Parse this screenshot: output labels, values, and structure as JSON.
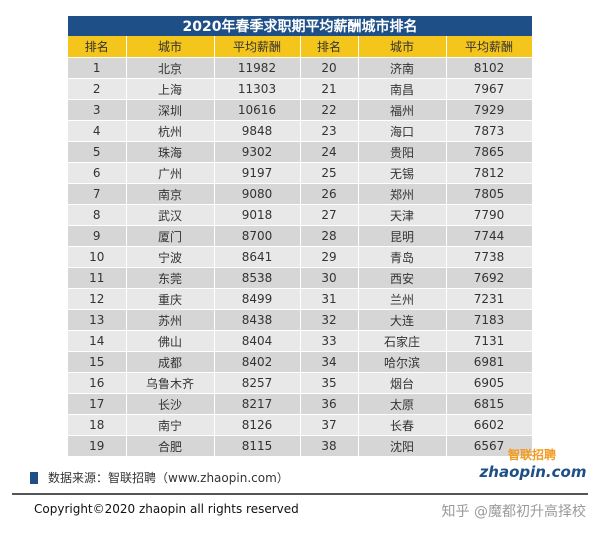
{
  "title": "2020年春季求职期平均薪酬城市排名",
  "headers": [
    "排名",
    "城市",
    "平均薪酬",
    "排名",
    "城市",
    "平均薪酬"
  ],
  "rows": [
    [
      "1",
      "北京",
      "11982",
      "20",
      "济南",
      "8102"
    ],
    [
      "2",
      "上海",
      "11303",
      "21",
      "南昌",
      "7967"
    ],
    [
      "3",
      "深圳",
      "10616",
      "22",
      "福州",
      "7929"
    ],
    [
      "4",
      "杭州",
      "9848",
      "23",
      "海口",
      "7873"
    ],
    [
      "5",
      "珠海",
      "9302",
      "24",
      "贵阳",
      "7865"
    ],
    [
      "6",
      "广州",
      "9197",
      "25",
      "无锡",
      "7812"
    ],
    [
      "7",
      "南京",
      "9080",
      "26",
      "郑州",
      "7805"
    ],
    [
      "8",
      "武汉",
      "9018",
      "27",
      "天津",
      "7790"
    ],
    [
      "9",
      "厦门",
      "8700",
      "28",
      "昆明",
      "7744"
    ],
    [
      "10",
      "宁波",
      "8641",
      "29",
      "青岛",
      "7738"
    ],
    [
      "11",
      "东莞",
      "8538",
      "30",
      "西安",
      "7692"
    ],
    [
      "12",
      "重庆",
      "8499",
      "31",
      "兰州",
      "7231"
    ],
    [
      "13",
      "苏州",
      "8438",
      "32",
      "大连",
      "7183"
    ],
    [
      "14",
      "佛山",
      "8404",
      "33",
      "石家庄",
      "7131"
    ],
    [
      "15",
      "成都",
      "8402",
      "34",
      "哈尔滨",
      "6981"
    ],
    [
      "16",
      "乌鲁木齐",
      "8257",
      "35",
      "烟台",
      "6905"
    ],
    [
      "17",
      "长沙",
      "8217",
      "36",
      "太原",
      "6815"
    ],
    [
      "18",
      "南宁",
      "8126",
      "37",
      "长春",
      "6602"
    ],
    [
      "19",
      "合肥",
      "8115",
      "38",
      "沈阳",
      "6567"
    ]
  ],
  "source_text": "数据来源：智联招聘（www.zhaopin.com）",
  "logo": {
    "text_top": "智联招聘",
    "text_bottom": "zhaopin.com"
  },
  "copyright": "Copyright©2020 zhaopin all rights reserved",
  "watermark": "知乎 @魔都初升高择校",
  "colors": {
    "title_bg": "#1e4f86",
    "header_bg": "#f4c51a",
    "row_dark": "#d6d6d6",
    "row_light": "#e8e8e8",
    "logo_orange": "#f39a1e",
    "logo_blue": "#1e4f86"
  }
}
